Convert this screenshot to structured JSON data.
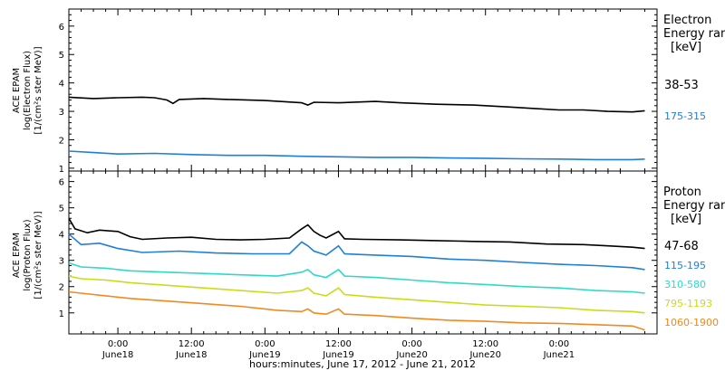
{
  "chart_data": [
    {
      "type": "line",
      "panel": "electron",
      "ylabel_lines": [
        "ACE EPAM",
        "log(Electron Flux)",
        "[1/(cm²s ster MeV)]"
      ],
      "ylim": [
        0.9,
        6.6
      ],
      "yticks": [
        1,
        2,
        3,
        4,
        5,
        6
      ],
      "xlim": [
        -8,
        88
      ],
      "legend_title_lines": [
        "Electron",
        "Energy ranges",
        "[keV]"
      ],
      "series": [
        {
          "name": "38-53",
          "color": "#000000",
          "points": [
            [
              -8,
              3.5
            ],
            [
              -4,
              3.45
            ],
            [
              0,
              3.48
            ],
            [
              4,
              3.5
            ],
            [
              6,
              3.48
            ],
            [
              8,
              3.4
            ],
            [
              9,
              3.28
            ],
            [
              10,
              3.42
            ],
            [
              14,
              3.45
            ],
            [
              18,
              3.42
            ],
            [
              24,
              3.38
            ],
            [
              30,
              3.3
            ],
            [
              31,
              3.22
            ],
            [
              32,
              3.32
            ],
            [
              36,
              3.3
            ],
            [
              42,
              3.35
            ],
            [
              46,
              3.3
            ],
            [
              52,
              3.25
            ],
            [
              58,
              3.22
            ],
            [
              64,
              3.15
            ],
            [
              68,
              3.1
            ],
            [
              72,
              3.05
            ],
            [
              76,
              3.05
            ],
            [
              80,
              3.0
            ],
            [
              84,
              2.98
            ],
            [
              86,
              3.02
            ]
          ]
        },
        {
          "name": "175-315",
          "color": "#1f7fd8",
          "points": [
            [
              -8,
              1.6
            ],
            [
              -4,
              1.55
            ],
            [
              0,
              1.5
            ],
            [
              6,
              1.52
            ],
            [
              12,
              1.48
            ],
            [
              18,
              1.45
            ],
            [
              24,
              1.45
            ],
            [
              30,
              1.42
            ],
            [
              36,
              1.4
            ],
            [
              42,
              1.38
            ],
            [
              48,
              1.38
            ],
            [
              54,
              1.36
            ],
            [
              60,
              1.35
            ],
            [
              66,
              1.33
            ],
            [
              72,
              1.32
            ],
            [
              78,
              1.3
            ],
            [
              84,
              1.3
            ],
            [
              86,
              1.32
            ]
          ]
        }
      ]
    },
    {
      "type": "line",
      "panel": "proton",
      "ylabel_lines": [
        "ACE EPAM",
        "log(Proton Flux)",
        "[1/(cm²s ster MeV)]"
      ],
      "ylim": [
        0.2,
        6.4
      ],
      "yticks": [
        1,
        2,
        3,
        4,
        5,
        6
      ],
      "xlim": [
        -8,
        88
      ],
      "legend_title_lines": [
        "Proton",
        "Energy ranges",
        "[keV]"
      ],
      "series": [
        {
          "name": "47-68",
          "color": "#000000",
          "points": [
            [
              -8,
              4.6
            ],
            [
              -7,
              4.2
            ],
            [
              -5,
              4.05
            ],
            [
              -3,
              4.15
            ],
            [
              0,
              4.1
            ],
            [
              2,
              3.9
            ],
            [
              4,
              3.8
            ],
            [
              8,
              3.85
            ],
            [
              12,
              3.88
            ],
            [
              16,
              3.8
            ],
            [
              20,
              3.78
            ],
            [
              24,
              3.8
            ],
            [
              28,
              3.85
            ],
            [
              30,
              4.2
            ],
            [
              31,
              4.35
            ],
            [
              32,
              4.1
            ],
            [
              33,
              3.95
            ],
            [
              34,
              3.85
            ],
            [
              36,
              4.1
            ],
            [
              37,
              3.82
            ],
            [
              40,
              3.8
            ],
            [
              46,
              3.78
            ],
            [
              52,
              3.75
            ],
            [
              58,
              3.72
            ],
            [
              64,
              3.7
            ],
            [
              70,
              3.62
            ],
            [
              76,
              3.6
            ],
            [
              80,
              3.55
            ],
            [
              84,
              3.5
            ],
            [
              86,
              3.45
            ]
          ]
        },
        {
          "name": "115-195",
          "color": "#1f7fd8",
          "points": [
            [
              -8,
              4.0
            ],
            [
              -6,
              3.6
            ],
            [
              -3,
              3.65
            ],
            [
              0,
              3.45
            ],
            [
              4,
              3.3
            ],
            [
              10,
              3.35
            ],
            [
              16,
              3.28
            ],
            [
              22,
              3.25
            ],
            [
              28,
              3.25
            ],
            [
              30,
              3.7
            ],
            [
              31,
              3.55
            ],
            [
              32,
              3.35
            ],
            [
              34,
              3.2
            ],
            [
              36,
              3.55
            ],
            [
              37,
              3.25
            ],
            [
              42,
              3.2
            ],
            [
              48,
              3.15
            ],
            [
              54,
              3.05
            ],
            [
              60,
              3.0
            ],
            [
              66,
              2.92
            ],
            [
              72,
              2.85
            ],
            [
              78,
              2.8
            ],
            [
              84,
              2.72
            ],
            [
              86,
              2.65
            ]
          ]
        },
        {
          "name": "310-580",
          "color": "#2fd9c9",
          "points": [
            [
              -8,
              2.9
            ],
            [
              -6,
              2.75
            ],
            [
              -2,
              2.7
            ],
            [
              2,
              2.6
            ],
            [
              8,
              2.55
            ],
            [
              14,
              2.5
            ],
            [
              20,
              2.45
            ],
            [
              26,
              2.4
            ],
            [
              30,
              2.55
            ],
            [
              31,
              2.65
            ],
            [
              32,
              2.45
            ],
            [
              34,
              2.35
            ],
            [
              36,
              2.65
            ],
            [
              37,
              2.4
            ],
            [
              42,
              2.35
            ],
            [
              48,
              2.25
            ],
            [
              54,
              2.15
            ],
            [
              60,
              2.08
            ],
            [
              66,
              2.0
            ],
            [
              72,
              1.95
            ],
            [
              78,
              1.85
            ],
            [
              84,
              1.8
            ],
            [
              86,
              1.75
            ]
          ]
        },
        {
          "name": "795-1193",
          "color": "#c8dd18",
          "points": [
            [
              -8,
              2.4
            ],
            [
              -6,
              2.3
            ],
            [
              -2,
              2.25
            ],
            [
              2,
              2.15
            ],
            [
              8,
              2.05
            ],
            [
              14,
              1.95
            ],
            [
              20,
              1.85
            ],
            [
              26,
              1.75
            ],
            [
              30,
              1.85
            ],
            [
              31,
              1.95
            ],
            [
              32,
              1.75
            ],
            [
              34,
              1.65
            ],
            [
              36,
              1.95
            ],
            [
              37,
              1.7
            ],
            [
              42,
              1.6
            ],
            [
              48,
              1.5
            ],
            [
              54,
              1.4
            ],
            [
              60,
              1.3
            ],
            [
              66,
              1.25
            ],
            [
              72,
              1.2
            ],
            [
              78,
              1.1
            ],
            [
              84,
              1.05
            ],
            [
              86,
              1.0
            ]
          ]
        },
        {
          "name": "1060-1900",
          "color": "#f08a20",
          "points": [
            [
              -8,
              1.8
            ],
            [
              -6,
              1.75
            ],
            [
              -2,
              1.65
            ],
            [
              2,
              1.55
            ],
            [
              8,
              1.45
            ],
            [
              14,
              1.35
            ],
            [
              20,
              1.25
            ],
            [
              26,
              1.1
            ],
            [
              30,
              1.05
            ],
            [
              31,
              1.15
            ],
            [
              32,
              1.0
            ],
            [
              34,
              0.95
            ],
            [
              36,
              1.15
            ],
            [
              37,
              0.95
            ],
            [
              42,
              0.9
            ],
            [
              48,
              0.8
            ],
            [
              54,
              0.72
            ],
            [
              60,
              0.68
            ],
            [
              66,
              0.62
            ],
            [
              72,
              0.6
            ],
            [
              78,
              0.55
            ],
            [
              84,
              0.5
            ],
            [
              86,
              0.35
            ]
          ]
        }
      ]
    }
  ],
  "x_axis": {
    "tick_hours": [
      0,
      12,
      24,
      36,
      48,
      60,
      72
    ],
    "tick_labels_time": [
      "0:00",
      "12:00",
      "0:00",
      "12:00",
      "0:00",
      "12:00",
      "0:00"
    ],
    "tick_labels_date": [
      "June18",
      "June18",
      "June19",
      "June19",
      "June20",
      "June20",
      "June21"
    ],
    "xlabel": "hours:minutes, June 17, 2012 - June 21, 2012"
  }
}
